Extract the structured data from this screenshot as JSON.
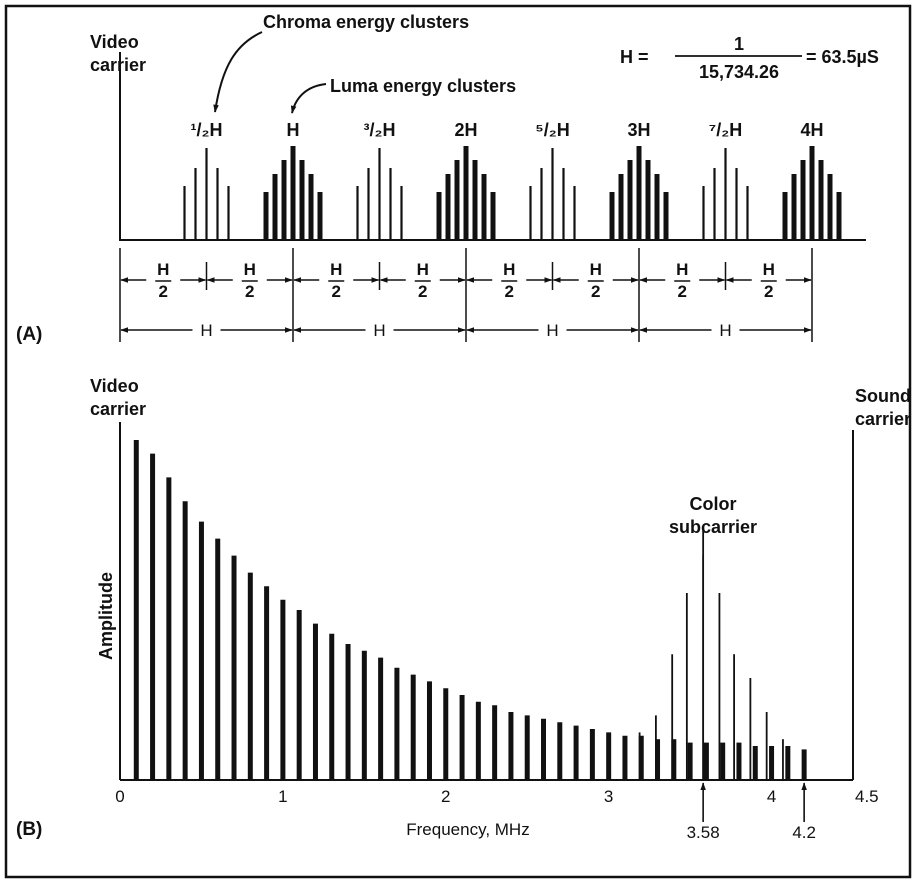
{
  "figure": {
    "panel_a": {
      "label": "(A)",
      "video_carrier": [
        "Video",
        "carrier"
      ],
      "chroma_callout": "Chroma energy clusters",
      "luma_callout": "Luma energy clusters",
      "formula": {
        "lhs": "H =",
        "numerator": "1",
        "denominator": "15,734.26",
        "rhs": "= 63.5µS"
      },
      "cluster_labels": [
        {
          "label": "¹/₂H",
          "kind": "chroma"
        },
        {
          "label": "H",
          "kind": "luma"
        },
        {
          "label": "³/₂H",
          "kind": "chroma"
        },
        {
          "label": "2H",
          "kind": "luma"
        },
        {
          "label": "⁵/₂H",
          "kind": "chroma"
        },
        {
          "label": "3H",
          "kind": "luma"
        },
        {
          "label": "⁷/₂H",
          "kind": "chroma"
        },
        {
          "label": "4H",
          "kind": "luma"
        }
      ],
      "half_spacing": {
        "num": "H",
        "den": "2"
      },
      "full_spacing": "H"
    },
    "panel_b": {
      "label": "(B)",
      "video_carrier": [
        "Video",
        "carrier"
      ],
      "sound_carrier": [
        "Sound",
        "carrier"
      ],
      "color_subcarrier": [
        "Color",
        "subcarrier"
      ],
      "ylabel": "Amplitude",
      "xlabel": "Frequency, MHz",
      "x_ticks": [
        "0",
        "1",
        "2",
        "3",
        "4",
        "4.5"
      ],
      "markers": [
        "3.58",
        "4.2"
      ]
    }
  },
  "chart_data": {
    "type": "bar",
    "xlabel": "Frequency, MHz",
    "ylabel": "Amplitude",
    "xlim": [
      0,
      4.5
    ],
    "ylim": [
      0,
      1
    ],
    "series": [
      {
        "x": [
          0.1,
          0.2,
          0.3,
          0.4,
          0.5,
          0.6,
          0.7,
          0.8,
          0.9,
          1.0,
          1.1,
          1.2,
          1.3,
          1.4,
          1.5,
          1.6,
          1.7,
          1.8,
          1.9,
          2.0,
          2.1,
          2.2,
          2.3,
          2.4,
          2.5,
          2.6,
          2.7,
          2.8,
          2.9,
          3.0,
          3.1,
          3.2,
          3.3,
          3.4,
          3.5,
          3.6,
          3.7,
          3.8,
          3.9,
          4.0,
          4.1,
          4.2
        ],
        "values": [
          1.0,
          0.96,
          0.89,
          0.82,
          0.76,
          0.71,
          0.66,
          0.61,
          0.57,
          0.53,
          0.5,
          0.46,
          0.43,
          0.4,
          0.38,
          0.36,
          0.33,
          0.31,
          0.29,
          0.27,
          0.25,
          0.23,
          0.22,
          0.2,
          0.19,
          0.18,
          0.17,
          0.16,
          0.15,
          0.14,
          0.13,
          0.13,
          0.12,
          0.12,
          0.11,
          0.11,
          0.11,
          0.11,
          0.1,
          0.1,
          0.1,
          0.09
        ]
      },
      {
        "x": [
          3.19,
          3.29,
          3.39,
          3.48,
          3.58,
          3.68,
          3.77,
          3.87,
          3.97,
          4.07
        ],
        "values": [
          0.14,
          0.19,
          0.37,
          0.55,
          0.74,
          0.55,
          0.37,
          0.3,
          0.2,
          0.12
        ]
      }
    ],
    "annotations": [
      {
        "x": 3.58,
        "label": "3.58"
      },
      {
        "x": 4.2,
        "label": "4.2"
      }
    ]
  }
}
